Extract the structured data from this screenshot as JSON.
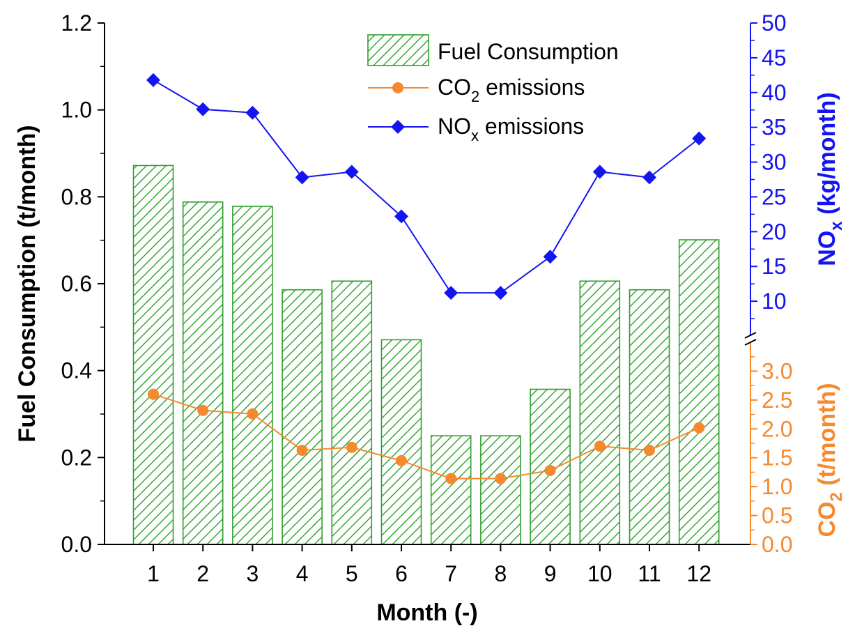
{
  "chart_data": {
    "type": "bar",
    "categories": [
      "1",
      "2",
      "3",
      "4",
      "5",
      "6",
      "7",
      "8",
      "9",
      "10",
      "11",
      "12"
    ],
    "series": [
      {
        "name": "Fuel Consumption",
        "kind": "bar",
        "axis": "left",
        "values": [
          0.872,
          0.788,
          0.778,
          0.586,
          0.606,
          0.471,
          0.25,
          0.25,
          0.357,
          0.606,
          0.586,
          0.701
        ]
      },
      {
        "name": "CO2 emissions",
        "kind": "line",
        "axis": "right-lower",
        "values": [
          2.6,
          2.32,
          2.26,
          1.63,
          1.68,
          1.45,
          1.14,
          1.14,
          1.28,
          1.7,
          1.63,
          2.02
        ]
      },
      {
        "name": "NOx emissions",
        "kind": "line",
        "axis": "right-upper",
        "values": [
          41.8,
          37.6,
          37.1,
          27.8,
          28.6,
          22.2,
          11.2,
          11.2,
          16.4,
          28.6,
          27.8,
          33.4
        ]
      }
    ],
    "xlabel": "Month (-)",
    "ylabel": "Fuel Consumption (t/month)",
    "ylim": [
      0,
      1.2
    ],
    "y_ticks": [
      "0.0",
      "0.2",
      "0.4",
      "0.6",
      "0.8",
      "1.0",
      "1.2"
    ],
    "y2_upper": {
      "label_main": "NO",
      "label_sub": "x",
      "label_unit": "(kg/month)",
      "ylim": [
        5,
        50
      ],
      "ticks": [
        "10",
        "15",
        "20",
        "25",
        "30",
        "35",
        "40",
        "45",
        "50"
      ]
    },
    "y2_lower": {
      "label_main": "CO",
      "label_sub": "2",
      "label_unit": "(t/month)",
      "ylim": [
        0,
        3.5
      ],
      "ticks": [
        "0.0",
        "0.5",
        "1.0",
        "1.5",
        "2.0",
        "2.5",
        "3.0"
      ]
    },
    "legend": {
      "placement": "top-center",
      "items": [
        {
          "main": "Fuel Consumption",
          "sub": "",
          "suffix": ""
        },
        {
          "main": "CO",
          "sub": "2",
          "suffix": " emissions"
        },
        {
          "main": "NO",
          "sub": "x",
          "suffix": " emissions"
        }
      ]
    },
    "colors": {
      "bar_edge": "#2ca02c",
      "co2": "#f5892e",
      "nox": "#1414f0",
      "axis": "#000000"
    }
  }
}
